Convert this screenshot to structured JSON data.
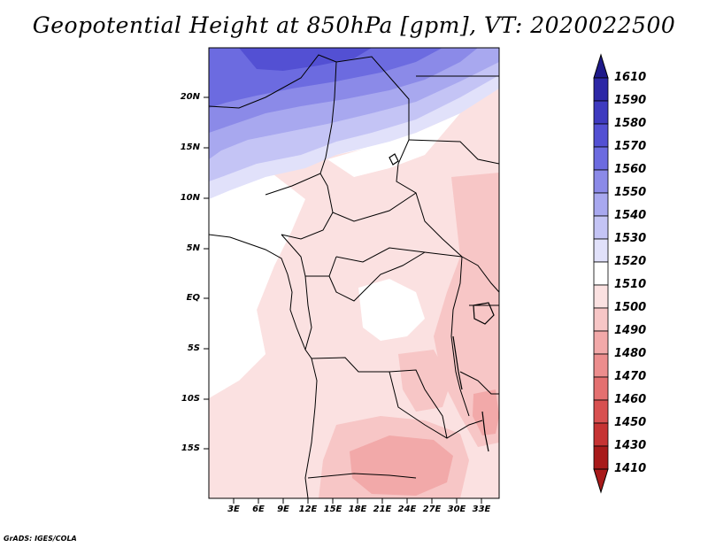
{
  "title": "Geopotential Height at 850hPa [gpm], VT: 2020022500",
  "credit": "GrADS: IGES/COLA",
  "map": {
    "lat_labels": [
      "20N",
      "15N",
      "10N",
      "5N",
      "EQ",
      "5S",
      "10S",
      "15S"
    ],
    "lon_labels": [
      "3E",
      "6E",
      "9E",
      "12E",
      "15E",
      "18E",
      "21E",
      "24E",
      "27E",
      "30E",
      "33E"
    ]
  },
  "colorbar": {
    "labels": [
      "1610",
      "1590",
      "1580",
      "1570",
      "1560",
      "1550",
      "1540",
      "1530",
      "1520",
      "1510",
      "1500",
      "1490",
      "1480",
      "1470",
      "1460",
      "1450",
      "1430",
      "1410"
    ],
    "colors": [
      "#1f1a8a",
      "#2d28a6",
      "#3e3abf",
      "#5350d3",
      "#6c6be0",
      "#8b8ae8",
      "#a8a8ef",
      "#c4c4f5",
      "#e1e1fa",
      "#ffffff",
      "#fbe1e1",
      "#f7c6c6",
      "#f2a9a9",
      "#ec8d8d",
      "#e47070",
      "#d85050",
      "#c63333",
      "#a81a1a"
    ]
  }
}
